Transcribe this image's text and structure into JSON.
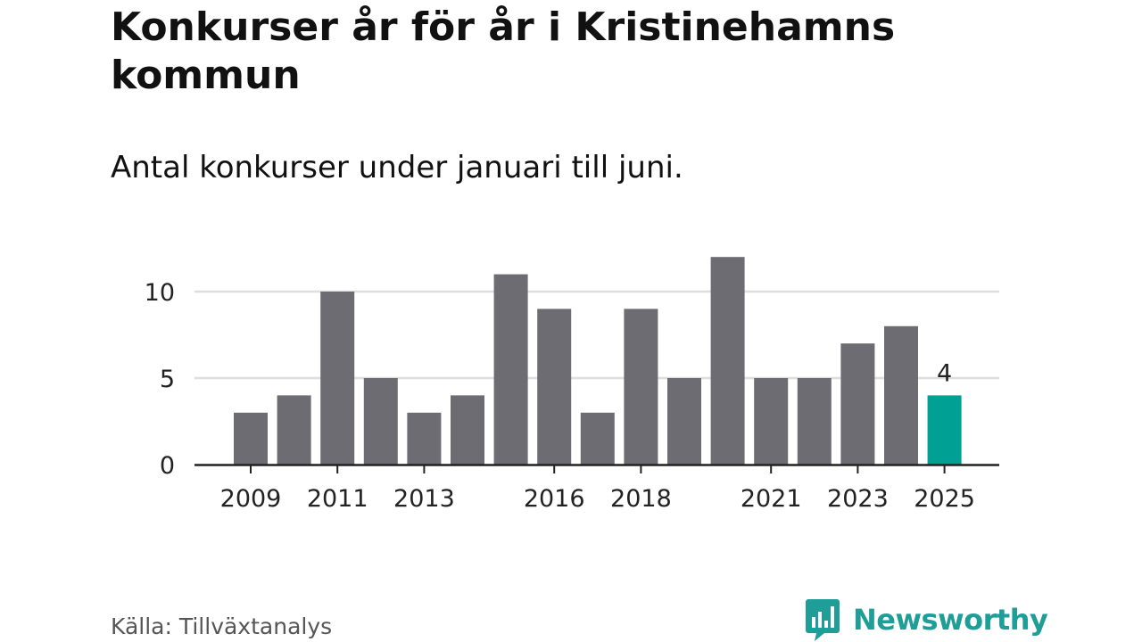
{
  "title": "Konkurser år för år i Kristinehamns kommun",
  "subtitle": "Antal konkurser under januari till juni.",
  "source": "Källa: Tillväxtanalys",
  "logo_text": "Newsworthy",
  "colors": {
    "bar": "#6d6c73",
    "highlight": "#00a095",
    "grid": "#dedede",
    "axis": "#222222",
    "logo": "#1e9e96"
  },
  "chart_data": {
    "type": "bar",
    "title": "Konkurser år för år i Kristinehamns kommun",
    "subtitle": "Antal konkurser under januari till juni.",
    "categories": [
      "2009",
      "2010",
      "2011",
      "2012",
      "2013",
      "2014",
      "2015",
      "2016",
      "2017",
      "2018",
      "2019",
      "2020",
      "2021",
      "2022",
      "2023",
      "2024",
      "2025"
    ],
    "values": [
      3,
      4,
      10,
      5,
      3,
      4,
      11,
      9,
      3,
      9,
      5,
      12,
      5,
      5,
      7,
      8,
      4
    ],
    "tick_labels_x": [
      "2009",
      "2011",
      "2013",
      "2016",
      "2018",
      "2021",
      "2023",
      "2025"
    ],
    "y_ticks": [
      0,
      5,
      10
    ],
    "ylim": [
      0,
      12
    ],
    "highlight_category": "2025",
    "annotations": [
      {
        "category": "2025",
        "text": "4"
      }
    ],
    "grid": true,
    "legend": "none"
  }
}
